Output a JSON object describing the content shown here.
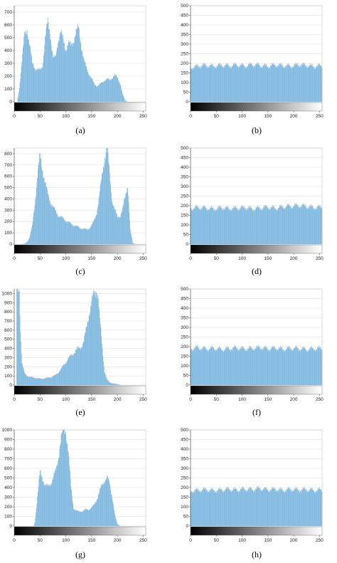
{
  "figure": {
    "bar_color": "#7fb8df",
    "axis_color": "#333333",
    "grid_color": "#d9d9d9"
  },
  "chart_data": [
    {
      "label": "(a)",
      "type": "bar",
      "xlim": [
        0,
        255
      ],
      "ylim": [
        0,
        750
      ],
      "yticks": [
        0,
        100,
        200,
        300,
        400,
        500,
        600,
        700
      ],
      "xticks": [
        0,
        50,
        100,
        150,
        200,
        250
      ],
      "x": [
        6,
        10,
        15,
        20,
        25,
        30,
        35,
        40,
        45,
        50,
        55,
        60,
        65,
        70,
        75,
        80,
        85,
        90,
        95,
        100,
        105,
        110,
        115,
        120,
        125,
        130,
        135,
        140,
        145,
        150,
        155,
        160,
        165,
        170,
        175,
        180,
        185,
        190,
        195,
        200,
        205,
        210,
        215,
        220,
        225
      ],
      "values": [
        0,
        110,
        320,
        520,
        570,
        440,
        300,
        265,
        250,
        245,
        285,
        490,
        625,
        530,
        345,
        340,
        480,
        545,
        480,
        410,
        455,
        440,
        480,
        540,
        580,
        440,
        320,
        265,
        220,
        180,
        140,
        125,
        130,
        150,
        170,
        175,
        170,
        190,
        205,
        190,
        150,
        60,
        10,
        0,
        0
      ],
      "grid": true
    },
    {
      "label": "(b)",
      "type": "bar",
      "xlim": [
        0,
        255
      ],
      "ylim": [
        0,
        500
      ],
      "yticks": [
        0,
        50,
        100,
        150,
        200,
        250,
        300,
        350,
        400,
        450,
        500
      ],
      "xticks": [
        0,
        50,
        100,
        150,
        200,
        250
      ],
      "x": [
        0,
        15,
        30,
        45,
        60,
        75,
        90,
        105,
        120,
        135,
        150,
        165,
        180,
        195,
        210,
        225,
        240,
        255
      ],
      "values": [
        178,
        186,
        190,
        185,
        191,
        187,
        192,
        186,
        194,
        190,
        185,
        192,
        188,
        186,
        193,
        189,
        184,
        188
      ],
      "grid": true
    },
    {
      "label": "(c)",
      "type": "bar",
      "xlim": [
        0,
        255
      ],
      "ylim": [
        0,
        850
      ],
      "yticks": [
        0,
        100,
        200,
        300,
        400,
        500,
        600,
        700,
        800
      ],
      "xticks": [
        0,
        50,
        100,
        150,
        200,
        250
      ],
      "x": [
        15,
        20,
        25,
        30,
        35,
        40,
        45,
        50,
        55,
        60,
        65,
        70,
        75,
        80,
        85,
        90,
        95,
        100,
        105,
        110,
        115,
        120,
        125,
        130,
        135,
        140,
        145,
        150,
        155,
        160,
        165,
        170,
        175,
        180,
        185,
        190,
        195,
        200,
        205,
        210,
        215,
        220,
        225,
        230,
        235
      ],
      "values": [
        0,
        5,
        20,
        60,
        160,
        360,
        600,
        780,
        660,
        540,
        440,
        380,
        330,
        290,
        260,
        240,
        225,
        210,
        195,
        180,
        170,
        160,
        150,
        140,
        135,
        130,
        140,
        165,
        210,
        280,
        420,
        600,
        760,
        850,
        620,
        380,
        300,
        240,
        250,
        300,
        420,
        530,
        120,
        10,
        0
      ],
      "grid": true
    },
    {
      "label": "(d)",
      "type": "bar",
      "xlim": [
        0,
        255
      ],
      "ylim": [
        0,
        500
      ],
      "yticks": [
        0,
        50,
        100,
        150,
        200,
        250,
        300,
        350,
        400,
        450,
        500
      ],
      "xticks": [
        0,
        50,
        100,
        150,
        200,
        250
      ],
      "x": [
        0,
        15,
        30,
        45,
        60,
        75,
        90,
        105,
        120,
        135,
        150,
        165,
        180,
        195,
        210,
        225,
        240,
        255
      ],
      "values": [
        186,
        192,
        188,
        183,
        190,
        185,
        187,
        191,
        184,
        188,
        193,
        186,
        195,
        198,
        201,
        197,
        190,
        193
      ],
      "grid": true
    },
    {
      "label": "(e)",
      "type": "bar",
      "xlim": [
        0,
        255
      ],
      "ylim": [
        0,
        1050
      ],
      "yticks": [
        0,
        100,
        200,
        300,
        400,
        500,
        600,
        700,
        800,
        900,
        1000
      ],
      "xticks": [
        0,
        50,
        100,
        150,
        200,
        250
      ],
      "x": [
        5,
        8,
        10,
        12,
        15,
        20,
        25,
        30,
        35,
        40,
        45,
        50,
        55,
        60,
        65,
        70,
        75,
        80,
        85,
        90,
        95,
        100,
        105,
        110,
        115,
        120,
        125,
        130,
        135,
        140,
        145,
        150,
        155,
        160,
        163,
        165,
        170,
        175,
        180,
        185,
        190,
        195,
        200,
        205
      ],
      "values": [
        1050,
        1050,
        1050,
        600,
        240,
        130,
        100,
        90,
        85,
        80,
        75,
        70,
        70,
        75,
        80,
        85,
        95,
        110,
        135,
        170,
        210,
        250,
        290,
        320,
        350,
        380,
        400,
        420,
        480,
        620,
        780,
        900,
        1000,
        1050,
        960,
        780,
        450,
        150,
        60,
        30,
        20,
        15,
        10,
        5
      ],
      "grid": true
    },
    {
      "label": "(f)",
      "type": "bar",
      "xlim": [
        0,
        255
      ],
      "ylim": [
        0,
        500
      ],
      "yticks": [
        0,
        50,
        100,
        150,
        200,
        250,
        300,
        350,
        400,
        450,
        500
      ],
      "xticks": [
        0,
        50,
        100,
        150,
        200,
        250
      ],
      "x": [
        0,
        15,
        30,
        45,
        60,
        75,
        90,
        105,
        120,
        135,
        150,
        165,
        180,
        195,
        210,
        225,
        240,
        255
      ],
      "values": [
        190,
        195,
        188,
        192,
        186,
        190,
        194,
        188,
        191,
        196,
        189,
        193,
        187,
        192,
        190,
        186,
        189,
        191
      ],
      "grid": true
    },
    {
      "label": "(g)",
      "type": "bar",
      "xlim": [
        0,
        255
      ],
      "ylim": [
        0,
        1000
      ],
      "yticks": [
        0,
        100,
        200,
        300,
        400,
        500,
        600,
        700,
        800,
        900,
        1000
      ],
      "xticks": [
        0,
        50,
        100,
        150,
        200,
        250
      ],
      "x": [
        38,
        40,
        45,
        50,
        55,
        60,
        65,
        70,
        75,
        80,
        85,
        90,
        95,
        100,
        105,
        110,
        115,
        120,
        125,
        130,
        135,
        140,
        145,
        150,
        155,
        160,
        165,
        170,
        175,
        180,
        185,
        190,
        195,
        200,
        205
      ],
      "values": [
        0,
        40,
        300,
        560,
        500,
        420,
        410,
        440,
        490,
        560,
        700,
        880,
        1000,
        1000,
        760,
        400,
        190,
        160,
        150,
        155,
        160,
        170,
        175,
        190,
        220,
        280,
        350,
        420,
        480,
        500,
        440,
        300,
        120,
        20,
        0
      ],
      "grid": true
    },
    {
      "label": "(h)",
      "type": "bar",
      "xlim": [
        0,
        255
      ],
      "ylim": [
        0,
        500
      ],
      "yticks": [
        0,
        50,
        100,
        150,
        200,
        250,
        300,
        350,
        400,
        450,
        500
      ],
      "xticks": [
        0,
        50,
        100,
        150,
        200,
        250
      ],
      "x": [
        0,
        15,
        30,
        45,
        60,
        75,
        90,
        105,
        120,
        135,
        150,
        165,
        180,
        195,
        210,
        225,
        240,
        255
      ],
      "values": [
        182,
        186,
        190,
        184,
        188,
        192,
        187,
        193,
        190,
        196,
        189,
        192,
        186,
        191,
        188,
        190,
        185,
        188
      ],
      "grid": true
    }
  ]
}
